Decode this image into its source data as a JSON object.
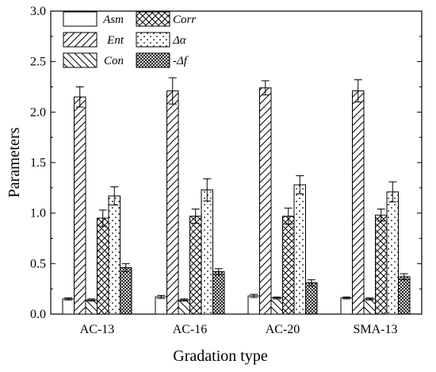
{
  "chart_data": {
    "type": "bar",
    "categories": [
      "AC-13",
      "AC-16",
      "AC-20",
      "SMA-13"
    ],
    "xlabel": "Gradation type",
    "ylabel": "Parameters",
    "ylim": [
      0,
      3.0
    ],
    "yticks": [
      "0.0",
      "0.5",
      "1.0",
      "1.5",
      "2.0",
      "2.5",
      "3.0"
    ],
    "error_bars": true,
    "legend_position": "top-left",
    "series": [
      {
        "name": "Asm",
        "pattern": "none",
        "values": [
          0.15,
          0.17,
          0.18,
          0.16
        ],
        "errors": [
          0.01,
          0.015,
          0.015,
          0.01
        ]
      },
      {
        "name": "Ent",
        "pattern": "forward-slash",
        "values": [
          2.15,
          2.21,
          2.24,
          2.21
        ],
        "errors": [
          0.1,
          0.13,
          0.07,
          0.11
        ]
      },
      {
        "name": "Con",
        "pattern": "back-slash",
        "values": [
          0.14,
          0.14,
          0.16,
          0.15
        ],
        "errors": [
          0.01,
          0.01,
          0.01,
          0.01
        ]
      },
      {
        "name": "Corr",
        "pattern": "cross-hatch",
        "values": [
          0.95,
          0.97,
          0.97,
          0.98
        ],
        "errors": [
          0.08,
          0.07,
          0.08,
          0.06
        ]
      },
      {
        "name": "Δα",
        "pattern": "dots",
        "values": [
          1.17,
          1.23,
          1.28,
          1.21
        ],
        "errors": [
          0.09,
          0.11,
          0.09,
          0.1
        ]
      },
      {
        "name": "-Δf",
        "pattern": "dense-cross",
        "values": [
          0.46,
          0.42,
          0.31,
          0.37
        ],
        "errors": [
          0.04,
          0.03,
          0.03,
          0.03
        ]
      }
    ]
  }
}
